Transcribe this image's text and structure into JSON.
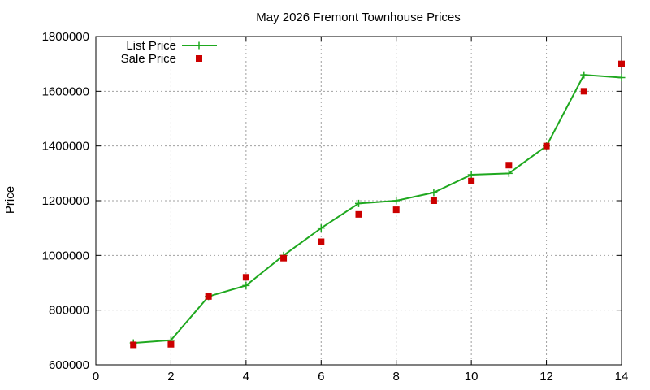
{
  "chart_data": {
    "type": "line",
    "title": "May 2026 Fremont Townhouse Prices",
    "xlabel": "",
    "ylabel": "Price",
    "xlim": [
      0,
      14
    ],
    "ylim": [
      600000,
      1800000
    ],
    "xticks": [
      0,
      2,
      4,
      6,
      8,
      10,
      12,
      14
    ],
    "yticks": [
      600000,
      800000,
      1000000,
      1200000,
      1400000,
      1600000,
      1800000
    ],
    "grid": true,
    "legend": "top-left",
    "series": [
      {
        "name": "List Price",
        "style": "linespoints",
        "marker": "plus",
        "color": "#1fa81f",
        "x": [
          1,
          2,
          3,
          4,
          5,
          6,
          7,
          8,
          9,
          10,
          11,
          12,
          13,
          14
        ],
        "y": [
          680000,
          690000,
          850000,
          890000,
          1000000,
          1100000,
          1190000,
          1200000,
          1230000,
          1295000,
          1300000,
          1400000,
          1660000,
          1650000
        ]
      },
      {
        "name": "Sale Price",
        "style": "points",
        "marker": "square",
        "color": "#cc0000",
        "x": [
          1,
          2,
          3,
          4,
          5,
          6,
          7,
          8,
          9,
          10,
          11,
          12,
          13,
          14
        ],
        "y": [
          673000,
          675000,
          850000,
          920000,
          990000,
          1050000,
          1150000,
          1167000,
          1200000,
          1272000,
          1330000,
          1400000,
          1600000,
          1700000
        ]
      }
    ]
  }
}
